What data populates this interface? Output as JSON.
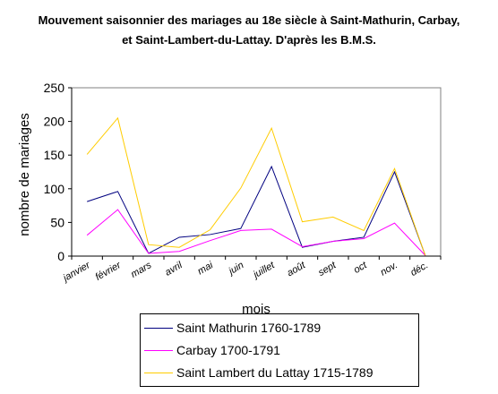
{
  "chart_data": {
    "type": "line",
    "title": "Mouvement saisonnier des mariages au 18e siècle à Saint-Mathurin, Carbay, et Saint-Lambert-du-Lattay. D'après les B.M.S.",
    "xlabel": "mois",
    "ylabel": "nombre de mariages",
    "ylim": [
      0,
      250
    ],
    "yticks": [
      "0",
      "50",
      "100",
      "150",
      "200",
      "250"
    ],
    "grid": false,
    "legend_position": "bottom",
    "categories": [
      "janvier",
      "février",
      "mars",
      "avril",
      "mai",
      "juin",
      "juillet",
      "août",
      "sept",
      "oct",
      "nov.",
      "déc."
    ],
    "series": [
      {
        "name": "Saint Mathurin 1760-1789",
        "color": "#000080",
        "values": [
          81,
          96,
          4,
          28,
          32,
          41,
          133,
          13,
          22,
          28,
          125,
          1
        ]
      },
      {
        "name": "Carbay 1700-1791",
        "color": "#ff00ff",
        "values": [
          31,
          69,
          4,
          7,
          23,
          38,
          40,
          14,
          22,
          26,
          49,
          1
        ]
      },
      {
        "name": "Saint Lambert du Lattay 1715-1789",
        "color": "#ffcc00",
        "values": [
          151,
          205,
          17,
          13,
          39,
          101,
          190,
          51,
          58,
          38,
          130,
          1
        ]
      }
    ]
  }
}
